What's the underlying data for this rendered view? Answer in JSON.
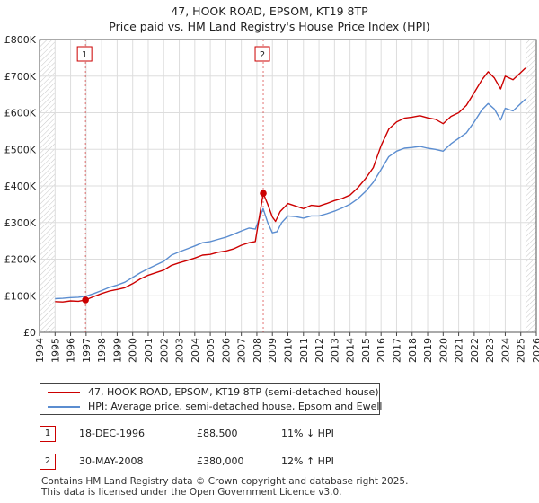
{
  "chart_data": {
    "type": "line",
    "title": "47, HOOK ROAD, EPSOM, KT19 8TP",
    "subtitle": "Price paid vs. HM Land Registry's House Price Index (HPI)",
    "xlabel": "",
    "ylabel": "",
    "xlim": [
      1994.0,
      2026.0
    ],
    "ylim": [
      0,
      800000
    ],
    "x_ticks": [
      1994,
      1995,
      1996,
      1997,
      1998,
      1999,
      2000,
      2001,
      2002,
      2003,
      2004,
      2005,
      2006,
      2007,
      2008,
      2009,
      2010,
      2011,
      2012,
      2013,
      2014,
      2015,
      2016,
      2017,
      2018,
      2019,
      2020,
      2021,
      2022,
      2023,
      2024,
      2025,
      2026
    ],
    "y_ticks": [
      {
        "value": 0,
        "label": "£0"
      },
      {
        "value": 100000,
        "label": "£100K"
      },
      {
        "value": 200000,
        "label": "£200K"
      },
      {
        "value": 300000,
        "label": "£300K"
      },
      {
        "value": 400000,
        "label": "£400K"
      },
      {
        "value": 500000,
        "label": "£500K"
      },
      {
        "value": 600000,
        "label": "£600K"
      },
      {
        "value": 700000,
        "label": "£700K"
      },
      {
        "value": 800000,
        "label": "£800K"
      }
    ],
    "grid": true,
    "series": [
      {
        "name": "47, HOOK ROAD, EPSOM, KT19 8TP (semi-detached house)",
        "color": "#cc0000",
        "x": [
          1995.0,
          1995.5,
          1996.0,
          1996.5,
          1996.96,
          1997.5,
          1998.0,
          1998.5,
          1999.0,
          1999.5,
          2000.0,
          2000.5,
          2001.0,
          2001.5,
          2002.0,
          2002.5,
          2003.0,
          2003.5,
          2004.0,
          2004.5,
          2005.0,
          2005.5,
          2006.0,
          2006.5,
          2007.0,
          2007.5,
          2007.9,
          2008.41,
          2008.7,
          2009.0,
          2009.2,
          2009.5,
          2010.0,
          2010.5,
          2011.0,
          2011.5,
          2012.0,
          2012.5,
          2013.0,
          2013.5,
          2014.0,
          2014.5,
          2015.0,
          2015.5,
          2016.0,
          2016.5,
          2017.0,
          2017.5,
          2018.0,
          2018.5,
          2019.0,
          2019.5,
          2020.0,
          2020.5,
          2021.0,
          2021.5,
          2022.0,
          2022.5,
          2022.9,
          2023.3,
          2023.7,
          2024.0,
          2024.5,
          2025.0,
          2025.3
        ],
        "values": [
          84000,
          83000,
          86000,
          85000,
          88500,
          98000,
          106000,
          113000,
          117000,
          122000,
          133000,
          146000,
          156000,
          163000,
          170000,
          183000,
          190000,
          196000,
          203000,
          211000,
          213000,
          219000,
          222000,
          228000,
          238000,
          245000,
          248000,
          380000,
          350000,
          315000,
          303000,
          330000,
          352000,
          345000,
          338000,
          347000,
          345000,
          352000,
          360000,
          366000,
          375000,
          395000,
          420000,
          450000,
          510000,
          555000,
          575000,
          585000,
          588000,
          592000,
          586000,
          582000,
          570000,
          590000,
          600000,
          620000,
          655000,
          690000,
          712000,
          695000,
          665000,
          700000,
          690000,
          710000,
          722000
        ]
      },
      {
        "name": "HPI: Average price, semi-detached house, Epsom and Ewell",
        "color": "#5b8dd0",
        "x": [
          1995.0,
          1995.5,
          1996.0,
          1996.5,
          1997.0,
          1997.5,
          1998.0,
          1998.5,
          1999.0,
          1999.5,
          2000.0,
          2000.5,
          2001.0,
          2001.5,
          2002.0,
          2002.5,
          2003.0,
          2003.5,
          2004.0,
          2004.5,
          2005.0,
          2005.5,
          2006.0,
          2006.5,
          2007.0,
          2007.5,
          2007.9,
          2008.4,
          2008.7,
          2009.0,
          2009.3,
          2009.6,
          2010.0,
          2010.5,
          2011.0,
          2011.5,
          2012.0,
          2012.5,
          2013.0,
          2013.5,
          2014.0,
          2014.5,
          2015.0,
          2015.5,
          2016.0,
          2016.5,
          2017.0,
          2017.5,
          2018.0,
          2018.5,
          2019.0,
          2019.5,
          2020.0,
          2020.5,
          2021.0,
          2021.5,
          2022.0,
          2022.5,
          2022.9,
          2023.3,
          2023.7,
          2024.0,
          2024.5,
          2025.0,
          2025.3
        ],
        "values": [
          92000,
          93000,
          95000,
          96000,
          99000,
          106000,
          114000,
          123000,
          129000,
          137000,
          150000,
          163000,
          174000,
          184000,
          194000,
          211000,
          220000,
          228000,
          236000,
          245000,
          248000,
          254000,
          260000,
          268000,
          277000,
          285000,
          282000,
          338000,
          300000,
          272000,
          275000,
          300000,
          318000,
          316000,
          312000,
          318000,
          318000,
          324000,
          331000,
          340000,
          350000,
          365000,
          385000,
          410000,
          445000,
          480000,
          495000,
          503000,
          505000,
          508000,
          503000,
          500000,
          495000,
          515000,
          530000,
          545000,
          575000,
          608000,
          625000,
          610000,
          580000,
          612000,
          605000,
          625000,
          637000
        ]
      }
    ],
    "sale_markers": [
      {
        "label": "1",
        "x": 1996.96,
        "value": 88500
      },
      {
        "label": "2",
        "x": 2008.41,
        "value": 380000
      }
    ],
    "hatched_regions": [
      {
        "from": 1994.0,
        "to": 1995.0
      },
      {
        "from": 2025.3,
        "to": 2026.0
      }
    ]
  },
  "legend": {
    "property_label": "47, HOOK ROAD, EPSOM, KT19 8TP (semi-detached house)",
    "hpi_label": "HPI: Average price, semi-detached house, Epsom and Ewell"
  },
  "sales": [
    {
      "num": "1",
      "date": "18-DEC-1996",
      "price": "£88,500",
      "hpi": "11% ↓ HPI"
    },
    {
      "num": "2",
      "date": "30-MAY-2008",
      "price": "£380,000",
      "hpi": "12% ↑ HPI"
    }
  ],
  "footer": {
    "line1": "Contains HM Land Registry data © Crown copyright and database right 2025.",
    "line2": "This data is licensed under the Open Government Licence v3.0."
  },
  "colors": {
    "property": "#cc0000",
    "hpi": "#5b8dd0",
    "grid": "#dddddd",
    "marker_line": "#cc0000"
  }
}
